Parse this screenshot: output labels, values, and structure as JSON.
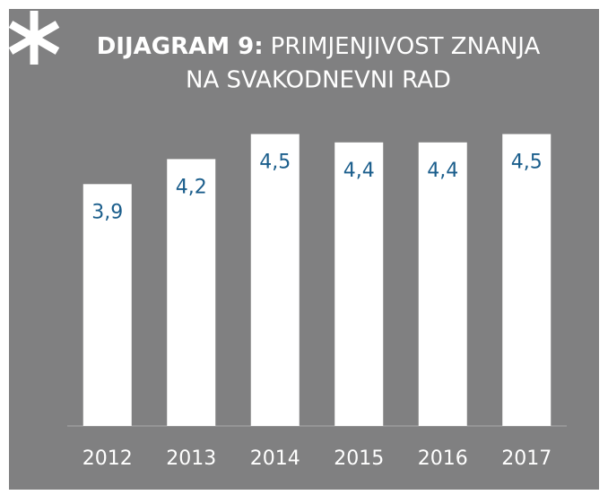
{
  "chart_data": {
    "type": "bar",
    "title": [
      "DIJAGRAM 9:",
      "PRIMJENJIVOST ZNANJA",
      "NA SVAKODNEVNI RAD"
    ],
    "categories": [
      "2012",
      "2013",
      "2014",
      "2015",
      "2016",
      "2017"
    ],
    "values": [
      3.9,
      4.2,
      4.5,
      4.4,
      4.4,
      4.5
    ],
    "value_labels": [
      "3,9",
      "4,2",
      "4,5",
      "4,4",
      "4,4",
      "4,5"
    ],
    "color": "#ffffff",
    "label_color": "#1b5e8c",
    "ylim": [
      1,
      5
    ]
  }
}
